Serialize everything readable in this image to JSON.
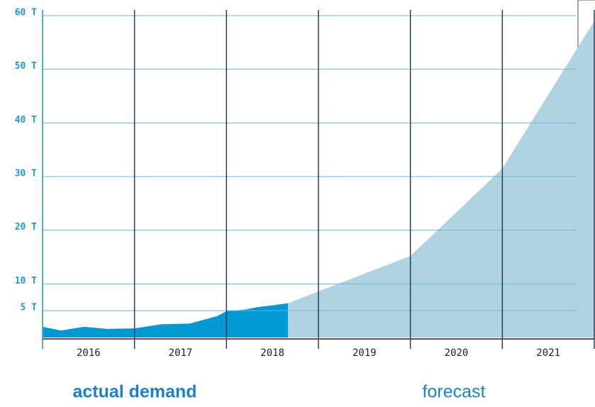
{
  "chart_data": {
    "type": "area",
    "categories": [
      "2016",
      "2017",
      "2018",
      "2019",
      "2020",
      "2021"
    ],
    "xlim": [
      2016,
      2022
    ],
    "ylim": [
      0,
      60
    ],
    "yticks": [
      {
        "value": 5,
        "label": "5 T"
      },
      {
        "value": 10,
        "label": "10 T"
      },
      {
        "value": 20,
        "label": "20 T"
      },
      {
        "value": 30,
        "label": "30 T"
      },
      {
        "value": 40,
        "label": "40 T"
      },
      {
        "value": 50,
        "label": "50 T"
      },
      {
        "value": 60,
        "label": "60 T"
      }
    ],
    "grid": true,
    "series": [
      {
        "name": "actual demand",
        "color": "#0099d6",
        "x": [
          2016,
          2016.2,
          2016.45,
          2016.7,
          2017,
          2017.3,
          2017.6,
          2017.9,
          2018,
          2018.2,
          2018.35,
          2018.5,
          2018.67
        ],
        "values": [
          2,
          1.3,
          2,
          1.6,
          1.7,
          2.5,
          2.6,
          4,
          4.9,
          5.2,
          5.7,
          6,
          6.4
        ]
      },
      {
        "name": "forecast",
        "color": "#b0d3e2",
        "x": [
          2018.67,
          2019,
          2020,
          2021,
          2022
        ],
        "values": [
          6.4,
          8.6,
          15.2,
          31.5,
          59
        ]
      }
    ]
  }
}
